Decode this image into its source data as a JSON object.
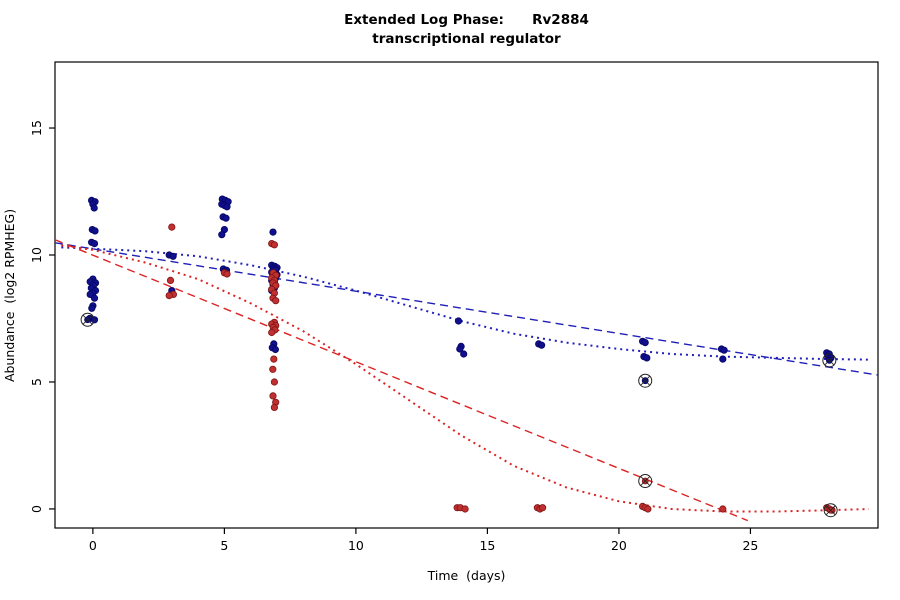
{
  "title": {
    "line1": "Extended Log Phase:      Rv2884",
    "line2": "transcriptional regulator"
  },
  "colors": {
    "blue_line": "#2020b8",
    "blue_point_fill": "#10108f",
    "blue_point_edge": "#050560",
    "red_line": "#dd2222",
    "red_point_fill": "#c03030",
    "red_point_edge": "#801515",
    "ring": "#222222",
    "axis": "#000000"
  },
  "chart_data": {
    "type": "scatter",
    "title": "Extended Log Phase: Rv2884 transcriptional regulator",
    "xlabel": "Time  (days)",
    "ylabel": "Abundance  (log2 RPMHEG)",
    "xticks": [
      0,
      5,
      10,
      15,
      20,
      25
    ],
    "yticks": [
      0,
      5,
      10,
      15
    ],
    "xlim": [
      -1.44,
      29.85
    ],
    "ylim": [
      -0.75,
      17.6
    ],
    "grid": false,
    "legend": "none",
    "series": [
      {
        "name": "blue-dashed-fit",
        "type": "line",
        "dash": "dashed",
        "color": "#2020b8",
        "points": [
          [
            -1.44,
            10.48
          ],
          [
            29.85,
            5.27
          ]
        ]
      },
      {
        "name": "red-dashed-fit",
        "type": "line",
        "dash": "dashed",
        "color": "#dd2222",
        "points": [
          [
            -1.44,
            10.6
          ],
          [
            24.9,
            -0.46
          ]
        ]
      },
      {
        "name": "blue-dotted-fit",
        "type": "line",
        "dash": "dotted",
        "color": "#2020b8",
        "points": [
          [
            -1.2,
            10.3
          ],
          [
            0,
            10.25
          ],
          [
            2,
            10.15
          ],
          [
            4,
            9.95
          ],
          [
            6,
            9.6
          ],
          [
            8,
            9.15
          ],
          [
            10,
            8.6
          ],
          [
            12,
            8.0
          ],
          [
            14,
            7.4
          ],
          [
            16,
            6.9
          ],
          [
            18,
            6.55
          ],
          [
            20,
            6.3
          ],
          [
            22,
            6.1
          ],
          [
            24,
            6.0
          ],
          [
            26,
            5.95
          ],
          [
            28,
            5.9
          ],
          [
            29.5,
            5.88
          ]
        ]
      },
      {
        "name": "red-dotted-fit",
        "type": "line",
        "dash": "dotted",
        "color": "#dd2222",
        "points": [
          [
            -1.2,
            10.38
          ],
          [
            0,
            10.2
          ],
          [
            2,
            9.7
          ],
          [
            4,
            9.05
          ],
          [
            6,
            8.1
          ],
          [
            8,
            7.0
          ],
          [
            10,
            5.7
          ],
          [
            12,
            4.3
          ],
          [
            14,
            2.9
          ],
          [
            16,
            1.7
          ],
          [
            18,
            0.85
          ],
          [
            20,
            0.3
          ],
          [
            22,
            0.0
          ],
          [
            24,
            -0.1
          ],
          [
            26,
            -0.1
          ],
          [
            28,
            -0.05
          ],
          [
            29.5,
            0.0
          ]
        ]
      },
      {
        "name": "blue-condition-points",
        "type": "scatter",
        "color": "#10108f",
        "edge": "#050560",
        "points": [
          [
            -0.05,
            12.15
          ],
          [
            0.08,
            12.1
          ],
          [
            0.0,
            12.0
          ],
          [
            0.05,
            11.85
          ],
          [
            -0.02,
            11.0
          ],
          [
            0.08,
            10.95
          ],
          [
            -0.05,
            10.5
          ],
          [
            0.06,
            10.45
          ],
          [
            0.0,
            9.05
          ],
          [
            -0.1,
            8.95
          ],
          [
            0.1,
            8.9
          ],
          [
            0.02,
            8.8
          ],
          [
            -0.06,
            8.7
          ],
          [
            0.1,
            8.6
          ],
          [
            0.0,
            8.5
          ],
          [
            -0.1,
            8.45
          ],
          [
            0.06,
            8.3
          ],
          [
            0.0,
            8.0
          ],
          [
            -0.04,
            7.9
          ],
          [
            -0.12,
            7.5
          ],
          [
            0.06,
            7.45
          ],
          [
            2.9,
            10.0
          ],
          [
            3.05,
            9.95
          ],
          [
            3.0,
            8.6
          ],
          [
            4.92,
            12.2
          ],
          [
            5.04,
            12.15
          ],
          [
            5.14,
            12.1
          ],
          [
            4.9,
            12.0
          ],
          [
            5.0,
            11.95
          ],
          [
            5.1,
            11.9
          ],
          [
            4.95,
            11.5
          ],
          [
            5.06,
            11.45
          ],
          [
            5.0,
            11.0
          ],
          [
            4.9,
            10.8
          ],
          [
            4.96,
            9.45
          ],
          [
            5.08,
            9.4
          ],
          [
            5.0,
            9.35
          ],
          [
            6.85,
            10.9
          ],
          [
            6.8,
            9.6
          ],
          [
            6.92,
            9.55
          ],
          [
            7.0,
            9.5
          ],
          [
            6.86,
            9.45
          ],
          [
            6.95,
            9.4
          ],
          [
            6.8,
            9.32
          ],
          [
            6.9,
            9.28
          ],
          [
            7.0,
            9.22
          ],
          [
            6.86,
            9.15
          ],
          [
            6.95,
            9.1
          ],
          [
            6.8,
            9.0
          ],
          [
            6.9,
            8.95
          ],
          [
            6.85,
            8.85
          ],
          [
            6.95,
            8.8
          ],
          [
            6.9,
            8.7
          ],
          [
            6.8,
            8.6
          ],
          [
            6.88,
            6.5
          ],
          [
            6.82,
            6.35
          ],
          [
            6.94,
            6.28
          ],
          [
            13.9,
            7.4
          ],
          [
            14.0,
            6.4
          ],
          [
            13.95,
            6.3
          ],
          [
            14.1,
            6.1
          ],
          [
            16.95,
            6.5
          ],
          [
            17.06,
            6.45
          ],
          [
            20.9,
            6.6
          ],
          [
            21.0,
            6.55
          ],
          [
            20.95,
            6.0
          ],
          [
            21.06,
            5.95
          ],
          [
            23.9,
            6.3
          ],
          [
            24.0,
            6.25
          ],
          [
            23.95,
            5.9
          ],
          [
            27.9,
            6.15
          ],
          [
            28.0,
            6.1
          ],
          [
            27.94,
            6.0
          ],
          [
            28.06,
            5.95
          ]
        ]
      },
      {
        "name": "red-condition-points",
        "type": "scatter",
        "color": "#c03030",
        "edge": "#801515",
        "points": [
          [
            3.0,
            11.1
          ],
          [
            2.95,
            9.0
          ],
          [
            3.06,
            8.45
          ],
          [
            2.9,
            8.4
          ],
          [
            5.0,
            9.3
          ],
          [
            5.1,
            9.25
          ],
          [
            6.8,
            10.45
          ],
          [
            6.9,
            10.4
          ],
          [
            6.86,
            9.3
          ],
          [
            6.95,
            9.2
          ],
          [
            6.8,
            9.1
          ],
          [
            6.9,
            9.0
          ],
          [
            6.85,
            8.9
          ],
          [
            6.95,
            8.8
          ],
          [
            6.8,
            8.65
          ],
          [
            6.9,
            8.5
          ],
          [
            6.85,
            8.3
          ],
          [
            6.95,
            8.2
          ],
          [
            6.9,
            7.35
          ],
          [
            6.8,
            7.28
          ],
          [
            6.95,
            7.22
          ],
          [
            6.86,
            7.15
          ],
          [
            6.92,
            7.05
          ],
          [
            6.8,
            6.95
          ],
          [
            6.88,
            5.9
          ],
          [
            6.84,
            5.5
          ],
          [
            6.9,
            5.0
          ],
          [
            6.85,
            4.45
          ],
          [
            6.95,
            4.2
          ],
          [
            6.9,
            4.0
          ],
          [
            13.85,
            0.05
          ],
          [
            13.97,
            0.05
          ],
          [
            14.15,
            0.0
          ],
          [
            16.9,
            0.05
          ],
          [
            17.0,
            0.0
          ],
          [
            17.1,
            0.05
          ],
          [
            20.9,
            0.1
          ],
          [
            21.0,
            0.05
          ],
          [
            21.1,
            0.0
          ],
          [
            23.95,
            0.0
          ],
          [
            27.9,
            0.05
          ],
          [
            28.0,
            0.0
          ],
          [
            28.1,
            -0.05
          ]
        ]
      },
      {
        "name": "blue-circled-points",
        "type": "scatter-circled",
        "color": "#10108f",
        "edge": "#050560",
        "points": [
          [
            -0.2,
            7.45
          ],
          [
            21.0,
            5.05
          ],
          [
            28.0,
            5.85
          ]
        ]
      },
      {
        "name": "red-circled-points",
        "type": "scatter-circled",
        "color": "#c03030",
        "edge": "#801515",
        "points": [
          [
            21.0,
            1.1
          ],
          [
            28.05,
            -0.05
          ]
        ]
      }
    ]
  }
}
